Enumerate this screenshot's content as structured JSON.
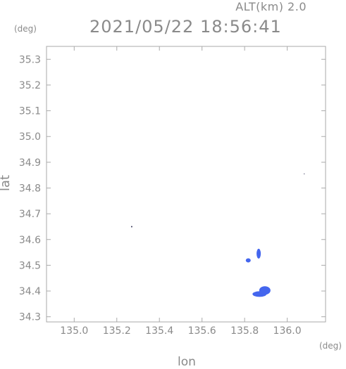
{
  "header": {
    "altitude_label": "ALT(km) 2.0",
    "timestamp": "2021/05/22 18:56:41",
    "y_unit": "(deg)",
    "x_unit": "(deg)"
  },
  "chart_data": {
    "type": "heatmap",
    "xlabel": "lon",
    "ylabel": "lat",
    "xlim": [
      134.87,
      136.18
    ],
    "ylim": [
      34.28,
      35.35
    ],
    "x_ticks": [
      "135.0",
      "135.2",
      "135.4",
      "135.6",
      "135.8",
      "136.0"
    ],
    "y_ticks": [
      "34.3",
      "34.4",
      "34.5",
      "34.6",
      "34.7",
      "34.8",
      "34.9",
      "35.0",
      "35.1",
      "35.2",
      "35.3"
    ],
    "grid": false,
    "colors": {
      "echo": "#4466ee",
      "dot": "#333355",
      "axis": "#aaaaaa"
    },
    "echo_cells": [
      {
        "lon": 135.27,
        "lat": 34.65,
        "value": "dot"
      },
      {
        "lon": 136.08,
        "lat": 34.855,
        "value": "dot"
      },
      {
        "lon": 135.866,
        "lat": 34.545,
        "value": "echo"
      },
      {
        "lon": 135.817,
        "lat": 34.519,
        "value": "echo"
      },
      {
        "lon": 135.87,
        "lat": 34.388,
        "value": "echo"
      },
      {
        "lon": 135.895,
        "lat": 34.402,
        "value": "echo"
      }
    ]
  }
}
